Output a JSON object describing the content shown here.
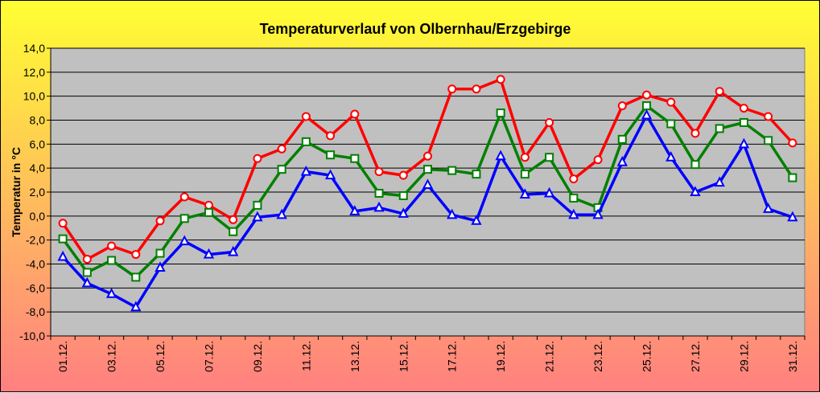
{
  "chart_data": {
    "type": "line",
    "title": "Temperaturverlauf von Olbernhau/Erzgebirge",
    "ylabel": "Temperatur  in  °C",
    "xlabel": "",
    "ylim": [
      -10,
      14
    ],
    "yticks": [
      -10,
      -8,
      -6,
      -4,
      -2,
      0,
      2,
      4,
      6,
      8,
      10,
      12,
      14
    ],
    "ytick_labels": [
      "-10,0",
      "-8,0",
      "-6,0",
      "-4,0",
      "-2,0",
      "0,0",
      "2,0",
      "4,0",
      "6,0",
      "8,0",
      "10,0",
      "12,0",
      "14,0"
    ],
    "categories": [
      "01.12.",
      "02.12.",
      "03.12.",
      "04.12.",
      "05.12.",
      "06.12.",
      "07.12.",
      "08.12.",
      "09.12.",
      "10.12.",
      "11.12.",
      "12.12.",
      "13.12.",
      "14.12.",
      "15.12.",
      "16.12.",
      "17.12.",
      "18.12.",
      "19.12.",
      "20.12.",
      "21.12.",
      "22.12.",
      "23.12.",
      "24.12.",
      "25.12.",
      "26.12.",
      "27.12.",
      "28.12.",
      "29.12.",
      "30.12.",
      "31.12."
    ],
    "x_tick_labels": [
      "01.12.",
      "03.12.",
      "05.12.",
      "07.12.",
      "09.12.",
      "11.12.",
      "13.12.",
      "15.12.",
      "17.12.",
      "19.12.",
      "21.12.",
      "23.12.",
      "25.12.",
      "27.12.",
      "29.12.",
      "31.12."
    ],
    "series": [
      {
        "color": "#ff0000",
        "marker": "circle",
        "values": [
          -0.6,
          -3.6,
          -2.5,
          -3.2,
          -0.4,
          1.6,
          0.9,
          -0.3,
          4.8,
          5.6,
          8.3,
          6.7,
          8.5,
          3.7,
          3.4,
          5.0,
          10.6,
          10.6,
          11.4,
          4.9,
          7.8,
          3.1,
          4.7,
          9.2,
          10.1,
          9.5,
          6.9,
          10.4,
          9.0,
          8.3,
          6.1
        ]
      },
      {
        "color": "#008000",
        "marker": "square",
        "values": [
          -1.9,
          -4.7,
          -3.7,
          -5.1,
          -3.1,
          -0.2,
          0.3,
          -1.3,
          0.9,
          3.9,
          6.2,
          5.1,
          4.8,
          1.9,
          1.7,
          3.9,
          3.8,
          3.5,
          8.6,
          3.5,
          4.9,
          1.5,
          0.7,
          6.4,
          9.2,
          7.7,
          4.3,
          7.3,
          7.8,
          6.3,
          3.2
        ]
      },
      {
        "color": "#0000ff",
        "marker": "triangle",
        "values": [
          -3.4,
          -5.6,
          -6.5,
          -7.6,
          -4.3,
          -2.1,
          -3.2,
          -3.0,
          -0.1,
          0.1,
          3.7,
          3.4,
          0.4,
          0.7,
          0.2,
          2.6,
          0.1,
          -0.4,
          5.0,
          1.8,
          1.9,
          0.1,
          0.1,
          4.5,
          8.4,
          4.9,
          2.0,
          2.8,
          6.0,
          0.6,
          -0.1
        ]
      }
    ],
    "grid": true,
    "legend": false
  }
}
